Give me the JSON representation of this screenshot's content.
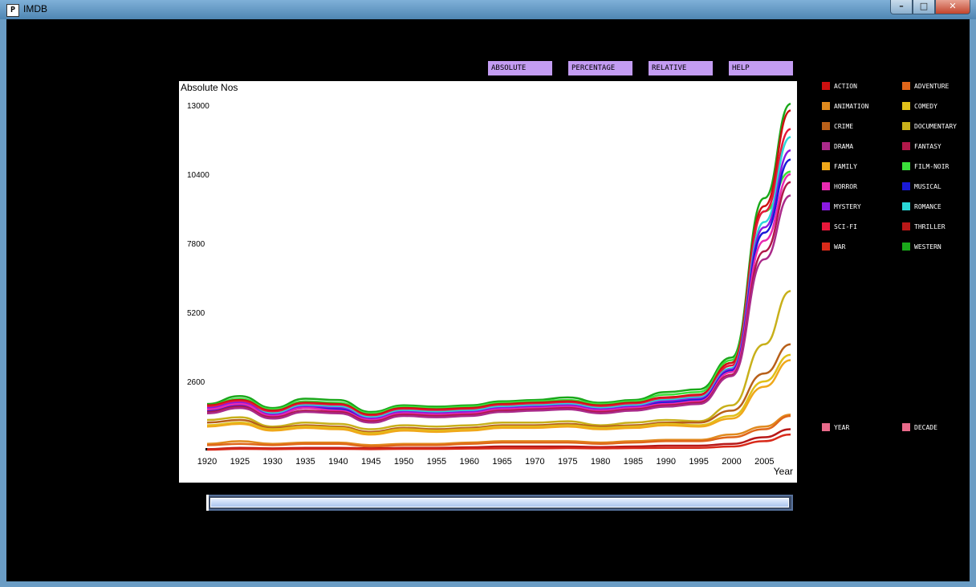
{
  "window": {
    "title": "IMDB",
    "app_icon_glyph": "P",
    "minimize": "–",
    "maximize": "□",
    "close": "✕"
  },
  "mode_buttons": [
    {
      "label": "ABSOLUTE NUMBER"
    },
    {
      "label": "PERCENTAGE"
    },
    {
      "label": "RELATIVE"
    },
    {
      "label": "HELP"
    }
  ],
  "legend": [
    {
      "label": "ACTION",
      "color": "#cc1010"
    },
    {
      "label": "ADVENTURE",
      "color": "#e0661a"
    },
    {
      "label": "ANIMATION",
      "color": "#e08a1e"
    },
    {
      "label": "COMEDY",
      "color": "#e0c01a"
    },
    {
      "label": "CRIME",
      "color": "#b8601a"
    },
    {
      "label": "DOCUMENTARY",
      "color": "#c8b01a"
    },
    {
      "label": "DRAMA",
      "color": "#aa2a8a"
    },
    {
      "label": "FANTASY",
      "color": "#b0184a"
    },
    {
      "label": "FAMILY",
      "color": "#f0a81a"
    },
    {
      "label": "FILM-NOIR",
      "color": "#3ae03a"
    },
    {
      "label": "HORROR",
      "color": "#e82ab0"
    },
    {
      "label": "MUSICAL",
      "color": "#1a1ad8"
    },
    {
      "label": "MYSTERY",
      "color": "#8a1ae0"
    },
    {
      "label": "ROMANCE",
      "color": "#2ad8d8"
    },
    {
      "label": "SCI-FI",
      "color": "#e8183a"
    },
    {
      "label": "THRILLER",
      "color": "#b81818"
    },
    {
      "label": "WAR",
      "color": "#d82a1a"
    },
    {
      "label": "WESTERN",
      "color": "#1aa81a"
    }
  ],
  "granularity": [
    {
      "label": "YEAR",
      "color": "#e86a8a"
    },
    {
      "label": "DECADE",
      "color": "#e86a8a"
    }
  ],
  "chart_data": {
    "type": "line",
    "title": "Absolute Nos",
    "xlabel": "Year",
    "ylabel": "",
    "xlim": [
      1920,
      2009
    ],
    "ylim": [
      0,
      13000
    ],
    "yticks": [
      2600,
      5200,
      7800,
      10400,
      13000
    ],
    "xticks": [
      1920,
      1925,
      1930,
      1935,
      1940,
      1945,
      1950,
      1955,
      1960,
      1965,
      1970,
      1975,
      1980,
      1985,
      1990,
      1995,
      2000,
      2005
    ],
    "x": [
      1920,
      1925,
      1930,
      1935,
      1940,
      1945,
      1950,
      1955,
      1960,
      1965,
      1970,
      1975,
      1980,
      1985,
      1990,
      1995,
      2000,
      2005,
      2009
    ],
    "series": [
      {
        "name": "WESTERN",
        "color": "#1aa81a",
        "values": [
          1750,
          2050,
          1600,
          1950,
          1900,
          1450,
          1700,
          1650,
          1700,
          1850,
          1900,
          2000,
          1800,
          1900,
          2200,
          2300,
          3500,
          9500,
          13050
        ]
      },
      {
        "name": "FILM-NOIR",
        "color": "#3ae03a",
        "values": [
          1700,
          1950,
          1550,
          1850,
          1800,
          1400,
          1650,
          1600,
          1650,
          1800,
          1850,
          1900,
          1750,
          1850,
          2100,
          2200,
          3400,
          9000,
          10500
        ]
      },
      {
        "name": "ACTION",
        "color": "#cc1010",
        "values": [
          1700,
          1900,
          1500,
          1800,
          1750,
          1350,
          1600,
          1550,
          1600,
          1750,
          1800,
          1850,
          1700,
          1800,
          2000,
          2100,
          3300,
          9200,
          12800
        ]
      },
      {
        "name": "SCI-FI",
        "color": "#e8183a",
        "values": [
          1650,
          1850,
          1450,
          1750,
          1700,
          1300,
          1550,
          1500,
          1550,
          1700,
          1750,
          1800,
          1650,
          1750,
          1950,
          2050,
          3200,
          9000,
          12100
        ]
      },
      {
        "name": "ROMANCE",
        "color": "#2ad8d8",
        "values": [
          1550,
          1750,
          1400,
          1700,
          1650,
          1250,
          1500,
          1450,
          1500,
          1650,
          1700,
          1750,
          1600,
          1700,
          1900,
          2000,
          3100,
          8600,
          11800
        ]
      },
      {
        "name": "MYSTERY",
        "color": "#8a1ae0",
        "values": [
          1600,
          1800,
          1350,
          1650,
          1600,
          1200,
          1450,
          1400,
          1450,
          1600,
          1650,
          1700,
          1550,
          1650,
          1850,
          1950,
          3050,
          8400,
          11300
        ]
      },
      {
        "name": "MUSICAL",
        "color": "#1a1ad8",
        "values": [
          1500,
          1700,
          1300,
          1600,
          1550,
          1150,
          1400,
          1350,
          1400,
          1550,
          1600,
          1650,
          1500,
          1600,
          1800,
          1900,
          3000,
          8200,
          10950
        ]
      },
      {
        "name": "HORROR",
        "color": "#e82ab0",
        "values": [
          1550,
          1750,
          1300,
          1600,
          1500,
          1150,
          1400,
          1350,
          1400,
          1550,
          1600,
          1650,
          1500,
          1600,
          1750,
          1850,
          2950,
          7900,
          10400
        ]
      },
      {
        "name": "FANTASY",
        "color": "#b0184a",
        "values": [
          1450,
          1650,
          1250,
          1500,
          1450,
          1100,
          1350,
          1300,
          1350,
          1500,
          1550,
          1600,
          1450,
          1550,
          1700,
          1800,
          2850,
          7500,
          10100
        ]
      },
      {
        "name": "DRAMA",
        "color": "#aa2a8a",
        "values": [
          1400,
          1600,
          1200,
          1450,
          1400,
          1050,
          1300,
          1250,
          1300,
          1450,
          1500,
          1550,
          1400,
          1500,
          1650,
          1750,
          2800,
          7200,
          9600
        ]
      },
      {
        "name": "DOCUMENTARY",
        "color": "#c8b01a",
        "values": [
          1150,
          1250,
          900,
          1050,
          1000,
          800,
          950,
          900,
          950,
          1050,
          1050,
          1100,
          950,
          1050,
          1150,
          1100,
          1700,
          4000,
          6000
        ]
      },
      {
        "name": "CRIME",
        "color": "#b8601a",
        "values": [
          1050,
          1150,
          850,
          950,
          900,
          700,
          850,
          800,
          850,
          950,
          950,
          1000,
          900,
          950,
          1050,
          1050,
          1500,
          2900,
          4000
        ]
      },
      {
        "name": "COMEDY",
        "color": "#e0c01a",
        "values": [
          950,
          1050,
          800,
          900,
          850,
          650,
          800,
          750,
          800,
          900,
          900,
          950,
          850,
          900,
          1000,
          950,
          1300,
          2600,
          3600
        ]
      },
      {
        "name": "FAMILY",
        "color": "#f0a81a",
        "values": [
          900,
          1000,
          750,
          850,
          800,
          600,
          750,
          700,
          750,
          850,
          850,
          900,
          800,
          850,
          950,
          900,
          1200,
          2400,
          3400
        ]
      },
      {
        "name": "ANIMATION",
        "color": "#e08a1e",
        "values": [
          250,
          350,
          250,
          300,
          300,
          200,
          250,
          250,
          300,
          350,
          350,
          350,
          300,
          350,
          400,
          400,
          600,
          900,
          1350
        ]
      },
      {
        "name": "ADVENTURE",
        "color": "#e0661a",
        "values": [
          200,
          250,
          200,
          250,
          250,
          150,
          200,
          200,
          250,
          300,
          300,
          300,
          250,
          300,
          350,
          350,
          500,
          800,
          1300
        ]
      },
      {
        "name": "THRILLER",
        "color": "#b81818",
        "values": [
          50,
          100,
          80,
          100,
          100,
          80,
          100,
          100,
          120,
          150,
          150,
          150,
          130,
          150,
          180,
          180,
          250,
          500,
          800
        ]
      },
      {
        "name": "WAR",
        "color": "#d82a1a",
        "values": [
          30,
          60,
          50,
          60,
          60,
          50,
          60,
          60,
          70,
          80,
          80,
          90,
          80,
          90,
          100,
          100,
          150,
          350,
          600
        ]
      }
    ]
  }
}
